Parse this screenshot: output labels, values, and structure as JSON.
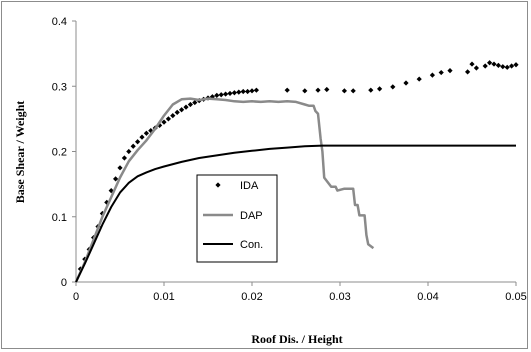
{
  "chart_data": {
    "type": "line",
    "title": "",
    "xlabel": "Roof Dis. / Height",
    "ylabel": "Base Shear / Weight",
    "xlim": [
      0,
      0.05
    ],
    "ylim": [
      0,
      0.4
    ],
    "x_ticks": [
      0,
      0.01,
      0.02,
      0.03,
      0.04,
      0.05
    ],
    "x_tick_labels": [
      "0",
      "0.01",
      "0.02",
      "0.03",
      "0.04",
      "0.05"
    ],
    "y_ticks": [
      0,
      0.1,
      0.2,
      0.3,
      0.4
    ],
    "y_tick_labels": [
      "0",
      "0.1",
      "0.2",
      "0.3",
      "0.4"
    ],
    "grid": false,
    "legend": {
      "placement": "center",
      "entries": [
        "IDA",
        "DAP",
        "Con."
      ]
    },
    "series": [
      {
        "name": "IDA",
        "style": "markers",
        "marker": "diamond",
        "color": "#000000",
        "points": [
          [
            0.0005,
            0.02
          ],
          [
            0.001,
            0.035
          ],
          [
            0.0015,
            0.05
          ],
          [
            0.002,
            0.068
          ],
          [
            0.0025,
            0.085
          ],
          [
            0.003,
            0.105
          ],
          [
            0.0035,
            0.122
          ],
          [
            0.004,
            0.14
          ],
          [
            0.0045,
            0.158
          ],
          [
            0.005,
            0.175
          ],
          [
            0.0055,
            0.19
          ],
          [
            0.006,
            0.2
          ],
          [
            0.0065,
            0.208
          ],
          [
            0.007,
            0.215
          ],
          [
            0.0075,
            0.222
          ],
          [
            0.008,
            0.228
          ],
          [
            0.0085,
            0.232
          ],
          [
            0.009,
            0.236
          ],
          [
            0.0095,
            0.24
          ],
          [
            0.01,
            0.245
          ],
          [
            0.0105,
            0.25
          ],
          [
            0.011,
            0.255
          ],
          [
            0.0115,
            0.26
          ],
          [
            0.012,
            0.264
          ],
          [
            0.0125,
            0.268
          ],
          [
            0.013,
            0.272
          ],
          [
            0.0135,
            0.275
          ],
          [
            0.014,
            0.278
          ],
          [
            0.0145,
            0.28
          ],
          [
            0.015,
            0.282
          ],
          [
            0.0155,
            0.284
          ],
          [
            0.016,
            0.286
          ],
          [
            0.0165,
            0.287
          ],
          [
            0.017,
            0.288
          ],
          [
            0.0175,
            0.289
          ],
          [
            0.018,
            0.29
          ],
          [
            0.0185,
            0.291
          ],
          [
            0.019,
            0.292
          ],
          [
            0.0195,
            0.292
          ],
          [
            0.02,
            0.293
          ],
          [
            0.0205,
            0.294
          ],
          [
            0.024,
            0.294
          ],
          [
            0.026,
            0.293
          ],
          [
            0.0275,
            0.294
          ],
          [
            0.0285,
            0.295
          ],
          [
            0.0305,
            0.293
          ],
          [
            0.0315,
            0.293
          ],
          [
            0.0335,
            0.294
          ],
          [
            0.0345,
            0.296
          ],
          [
            0.036,
            0.299
          ],
          [
            0.0375,
            0.305
          ],
          [
            0.039,
            0.311
          ],
          [
            0.0405,
            0.317
          ],
          [
            0.0415,
            0.321
          ],
          [
            0.0425,
            0.324
          ],
          [
            0.0445,
            0.322
          ],
          [
            0.045,
            0.334
          ],
          [
            0.0455,
            0.328
          ],
          [
            0.0465,
            0.331
          ],
          [
            0.047,
            0.336
          ],
          [
            0.0475,
            0.334
          ],
          [
            0.048,
            0.332
          ],
          [
            0.0485,
            0.33
          ],
          [
            0.049,
            0.329
          ],
          [
            0.0495,
            0.331
          ],
          [
            0.05,
            0.333
          ]
        ]
      },
      {
        "name": "DAP",
        "style": "line",
        "color": "#8a8a8a",
        "points": [
          [
            0,
            0
          ],
          [
            0.001,
            0.03
          ],
          [
            0.002,
            0.065
          ],
          [
            0.003,
            0.1
          ],
          [
            0.004,
            0.13
          ],
          [
            0.005,
            0.16
          ],
          [
            0.006,
            0.185
          ],
          [
            0.007,
            0.202
          ],
          [
            0.008,
            0.217
          ],
          [
            0.009,
            0.235
          ],
          [
            0.01,
            0.255
          ],
          [
            0.011,
            0.272
          ],
          [
            0.012,
            0.28
          ],
          [
            0.013,
            0.281
          ],
          [
            0.014,
            0.279
          ],
          [
            0.015,
            0.281
          ],
          [
            0.016,
            0.28
          ],
          [
            0.017,
            0.279
          ],
          [
            0.018,
            0.277
          ],
          [
            0.019,
            0.276
          ],
          [
            0.02,
            0.277
          ],
          [
            0.021,
            0.276
          ],
          [
            0.022,
            0.277
          ],
          [
            0.023,
            0.276
          ],
          [
            0.024,
            0.277
          ],
          [
            0.025,
            0.276
          ],
          [
            0.026,
            0.272
          ],
          [
            0.0265,
            0.27
          ],
          [
            0.027,
            0.27
          ],
          [
            0.0272,
            0.262
          ],
          [
            0.0275,
            0.258
          ],
          [
            0.0278,
            0.22
          ],
          [
            0.028,
            0.2
          ],
          [
            0.0282,
            0.16
          ],
          [
            0.029,
            0.146
          ],
          [
            0.0295,
            0.146
          ],
          [
            0.0297,
            0.14
          ],
          [
            0.0305,
            0.143
          ],
          [
            0.0315,
            0.143
          ],
          [
            0.0317,
            0.118
          ],
          [
            0.032,
            0.118
          ],
          [
            0.0322,
            0.102
          ],
          [
            0.0328,
            0.102
          ],
          [
            0.033,
            0.072
          ],
          [
            0.0332,
            0.058
          ],
          [
            0.0338,
            0.052
          ]
        ]
      },
      {
        "name": "Con.",
        "style": "line",
        "color": "#000000",
        "points": [
          [
            0,
            0
          ],
          [
            0.001,
            0.028
          ],
          [
            0.002,
            0.058
          ],
          [
            0.003,
            0.088
          ],
          [
            0.004,
            0.115
          ],
          [
            0.005,
            0.137
          ],
          [
            0.006,
            0.152
          ],
          [
            0.007,
            0.162
          ],
          [
            0.008,
            0.168
          ],
          [
            0.009,
            0.173
          ],
          [
            0.01,
            0.177
          ],
          [
            0.012,
            0.184
          ],
          [
            0.014,
            0.19
          ],
          [
            0.016,
            0.194
          ],
          [
            0.018,
            0.198
          ],
          [
            0.02,
            0.201
          ],
          [
            0.022,
            0.204
          ],
          [
            0.024,
            0.206
          ],
          [
            0.026,
            0.208
          ],
          [
            0.028,
            0.209
          ],
          [
            0.03,
            0.209
          ],
          [
            0.035,
            0.209
          ],
          [
            0.04,
            0.209
          ],
          [
            0.045,
            0.209
          ],
          [
            0.05,
            0.209
          ]
        ]
      }
    ]
  }
}
